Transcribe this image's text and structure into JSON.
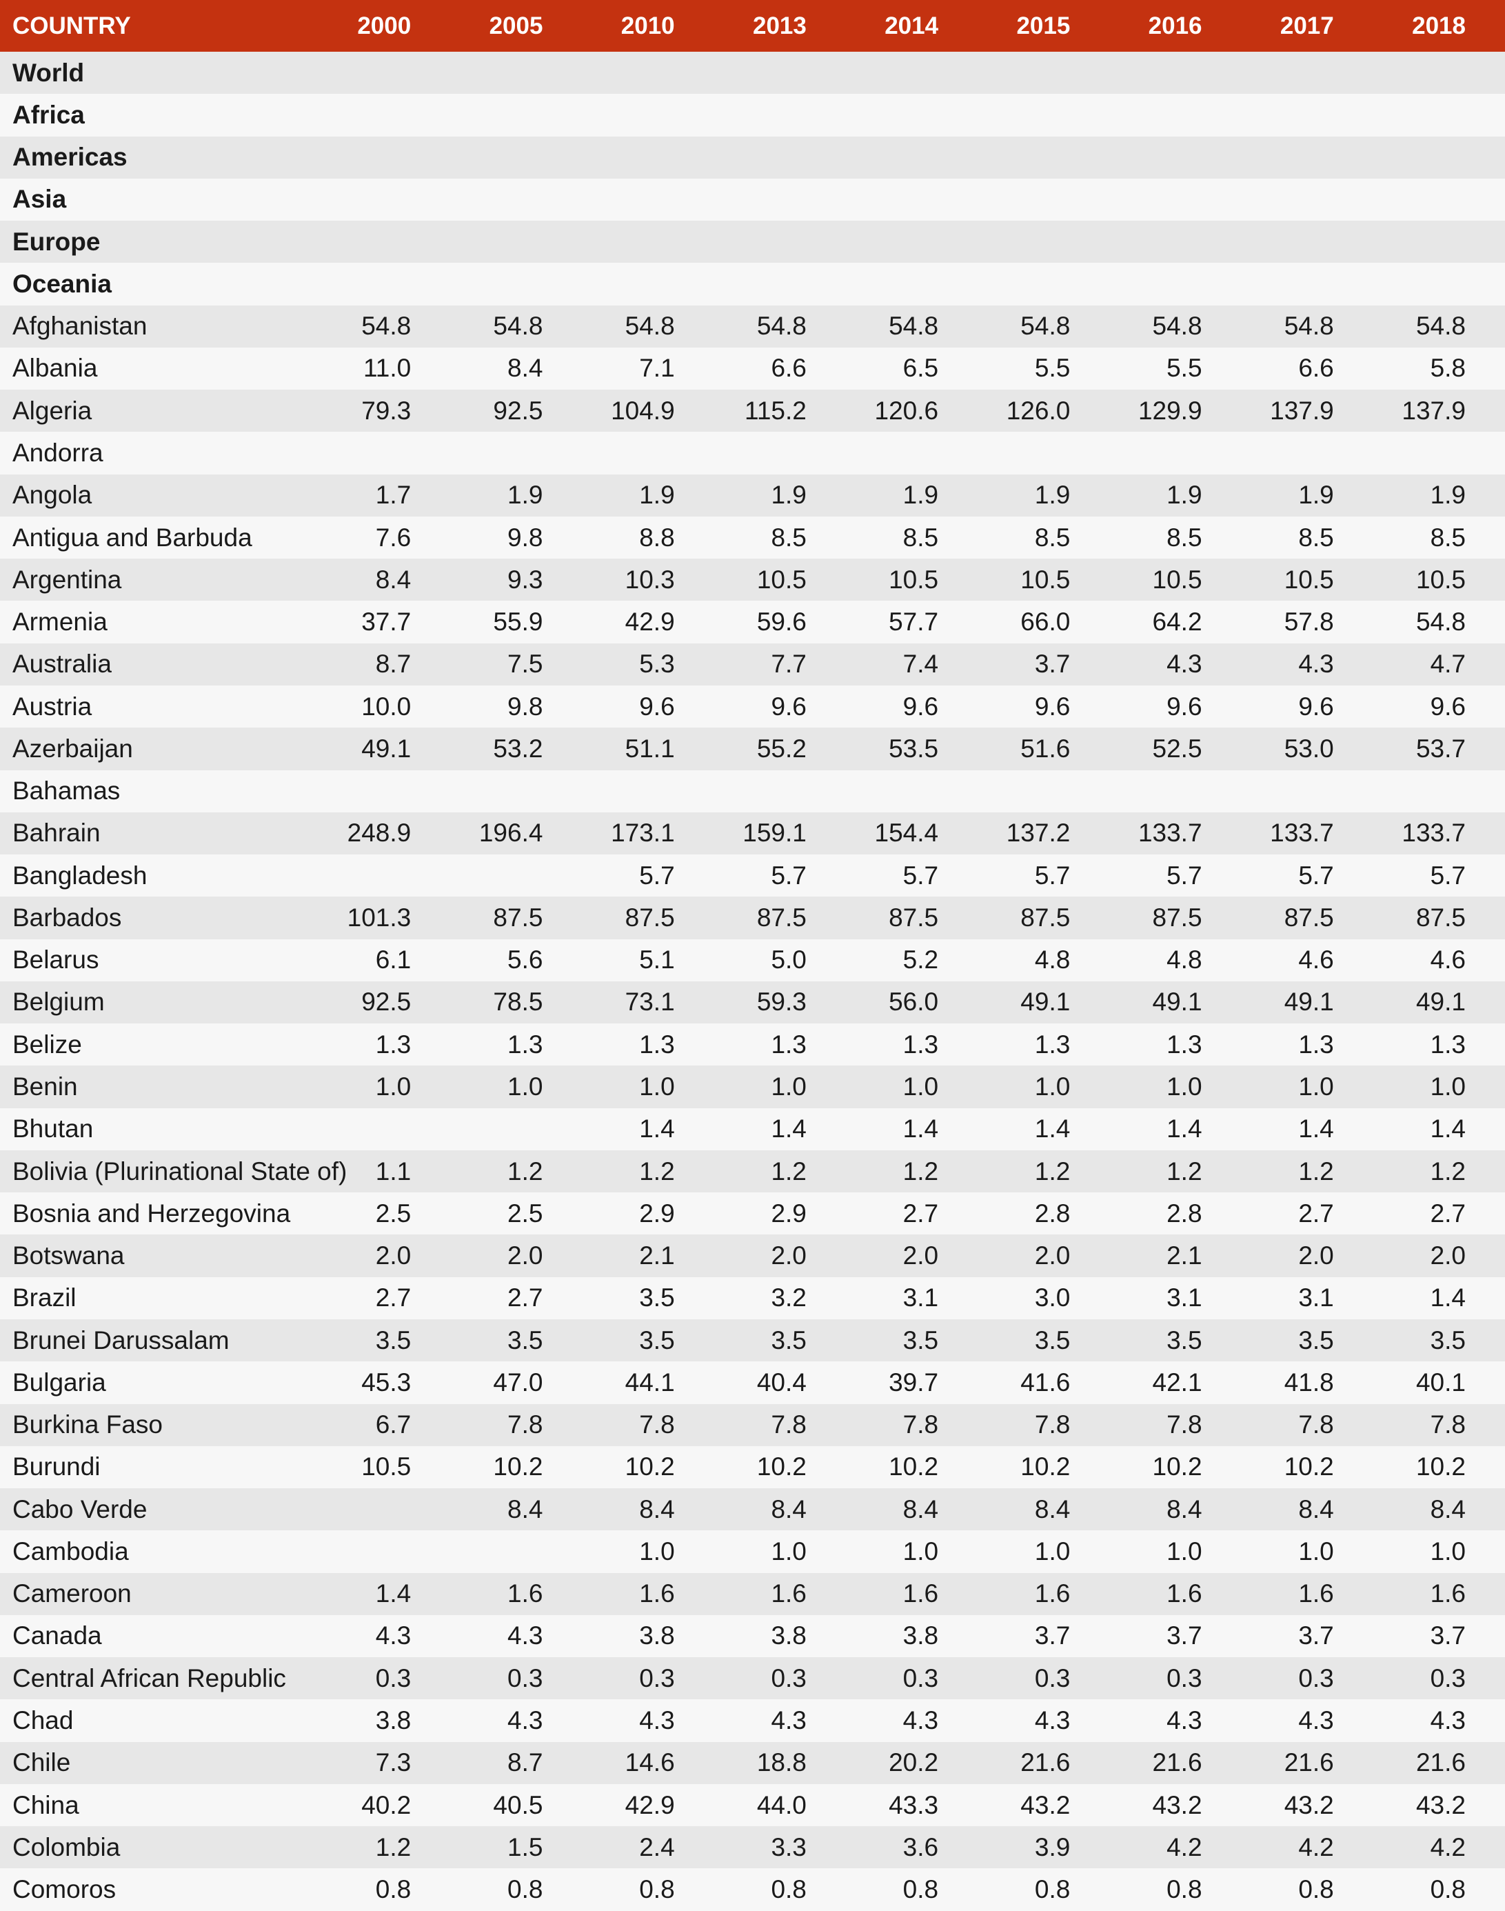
{
  "colors": {
    "header_bg": "#c43210",
    "header_text": "#ffffff",
    "row_shaded": "#e7e7e7",
    "row_plain": "#f7f7f7",
    "text": "#1a1a1a"
  },
  "table": {
    "columns": [
      "COUNTRY",
      "2000",
      "2005",
      "2010",
      "2013",
      "2014",
      "2015",
      "2016",
      "2017",
      "2018"
    ],
    "rows": [
      {
        "name": "World",
        "bold": true,
        "values": [
          "",
          "",
          "",
          "",
          "",
          "",
          "",
          "",
          ""
        ]
      },
      {
        "name": "Africa",
        "bold": true,
        "values": [
          "",
          "",
          "",
          "",
          "",
          "",
          "",
          "",
          ""
        ]
      },
      {
        "name": "Americas",
        "bold": true,
        "values": [
          "",
          "",
          "",
          "",
          "",
          "",
          "",
          "",
          ""
        ]
      },
      {
        "name": "Asia",
        "bold": true,
        "values": [
          "",
          "",
          "",
          "",
          "",
          "",
          "",
          "",
          ""
        ]
      },
      {
        "name": "Europe",
        "bold": true,
        "values": [
          "",
          "",
          "",
          "",
          "",
          "",
          "",
          "",
          ""
        ]
      },
      {
        "name": "Oceania",
        "bold": true,
        "values": [
          "",
          "",
          "",
          "",
          "",
          "",
          "",
          "",
          ""
        ]
      },
      {
        "name": "Afghanistan",
        "bold": false,
        "values": [
          "54.8",
          "54.8",
          "54.8",
          "54.8",
          "54.8",
          "54.8",
          "54.8",
          "54.8",
          "54.8"
        ]
      },
      {
        "name": "Albania",
        "bold": false,
        "values": [
          "11.0",
          "8.4",
          "7.1",
          "6.6",
          "6.5",
          "5.5",
          "5.5",
          "6.6",
          "5.8"
        ]
      },
      {
        "name": "Algeria",
        "bold": false,
        "values": [
          "79.3",
          "92.5",
          "104.9",
          "115.2",
          "120.6",
          "126.0",
          "129.9",
          "137.9",
          "137.9"
        ]
      },
      {
        "name": "Andorra",
        "bold": false,
        "values": [
          "",
          "",
          "",
          "",
          "",
          "",
          "",
          "",
          ""
        ]
      },
      {
        "name": "Angola",
        "bold": false,
        "values": [
          "1.7",
          "1.9",
          "1.9",
          "1.9",
          "1.9",
          "1.9",
          "1.9",
          "1.9",
          "1.9"
        ]
      },
      {
        "name": "Antigua and Barbuda",
        "bold": false,
        "values": [
          "7.6",
          "9.8",
          "8.8",
          "8.5",
          "8.5",
          "8.5",
          "8.5",
          "8.5",
          "8.5"
        ]
      },
      {
        "name": "Argentina",
        "bold": false,
        "values": [
          "8.4",
          "9.3",
          "10.3",
          "10.5",
          "10.5",
          "10.5",
          "10.5",
          "10.5",
          "10.5"
        ]
      },
      {
        "name": "Armenia",
        "bold": false,
        "values": [
          "37.7",
          "55.9",
          "42.9",
          "59.6",
          "57.7",
          "66.0",
          "64.2",
          "57.8",
          "54.8"
        ]
      },
      {
        "name": "Australia",
        "bold": false,
        "values": [
          "8.7",
          "7.5",
          "5.3",
          "7.7",
          "7.4",
          "3.7",
          "4.3",
          "4.3",
          "4.7"
        ]
      },
      {
        "name": "Austria",
        "bold": false,
        "values": [
          "10.0",
          "9.8",
          "9.6",
          "9.6",
          "9.6",
          "9.6",
          "9.6",
          "9.6",
          "9.6"
        ]
      },
      {
        "name": "Azerbaijan",
        "bold": false,
        "values": [
          "49.1",
          "53.2",
          "51.1",
          "55.2",
          "53.5",
          "51.6",
          "52.5",
          "53.0",
          "53.7"
        ]
      },
      {
        "name": "Bahamas",
        "bold": false,
        "values": [
          "",
          "",
          "",
          "",
          "",
          "",
          "",
          "",
          ""
        ]
      },
      {
        "name": "Bahrain",
        "bold": false,
        "values": [
          "248.9",
          "196.4",
          "173.1",
          "159.1",
          "154.4",
          "137.2",
          "133.7",
          "133.7",
          "133.7"
        ]
      },
      {
        "name": "Bangladesh",
        "bold": false,
        "values": [
          "",
          "",
          "5.7",
          "5.7",
          "5.7",
          "5.7",
          "5.7",
          "5.7",
          "5.7"
        ]
      },
      {
        "name": "Barbados",
        "bold": false,
        "values": [
          "101.3",
          "87.5",
          "87.5",
          "87.5",
          "87.5",
          "87.5",
          "87.5",
          "87.5",
          "87.5"
        ]
      },
      {
        "name": "Belarus",
        "bold": false,
        "values": [
          "6.1",
          "5.6",
          "5.1",
          "5.0",
          "5.2",
          "4.8",
          "4.8",
          "4.6",
          "4.6"
        ]
      },
      {
        "name": "Belgium",
        "bold": false,
        "values": [
          "92.5",
          "78.5",
          "73.1",
          "59.3",
          "56.0",
          "49.1",
          "49.1",
          "49.1",
          "49.1"
        ]
      },
      {
        "name": "Belize",
        "bold": false,
        "values": [
          "1.3",
          "1.3",
          "1.3",
          "1.3",
          "1.3",
          "1.3",
          "1.3",
          "1.3",
          "1.3"
        ]
      },
      {
        "name": "Benin",
        "bold": false,
        "values": [
          "1.0",
          "1.0",
          "1.0",
          "1.0",
          "1.0",
          "1.0",
          "1.0",
          "1.0",
          "1.0"
        ]
      },
      {
        "name": "Bhutan",
        "bold": false,
        "values": [
          "",
          "",
          "1.4",
          "1.4",
          "1.4",
          "1.4",
          "1.4",
          "1.4",
          "1.4"
        ]
      },
      {
        "name": "Bolivia (Plurinational State of)",
        "bold": false,
        "values": [
          "1.1",
          "1.2",
          "1.2",
          "1.2",
          "1.2",
          "1.2",
          "1.2",
          "1.2",
          "1.2"
        ]
      },
      {
        "name": "Bosnia and Herzegovina",
        "bold": false,
        "values": [
          "2.5",
          "2.5",
          "2.9",
          "2.9",
          "2.7",
          "2.8",
          "2.8",
          "2.7",
          "2.7"
        ]
      },
      {
        "name": "Botswana",
        "bold": false,
        "values": [
          "2.0",
          "2.0",
          "2.1",
          "2.0",
          "2.0",
          "2.0",
          "2.1",
          "2.0",
          "2.0"
        ]
      },
      {
        "name": "Brazil",
        "bold": false,
        "values": [
          "2.7",
          "2.7",
          "3.5",
          "3.2",
          "3.1",
          "3.0",
          "3.1",
          "3.1",
          "1.4"
        ]
      },
      {
        "name": "Brunei Darussalam",
        "bold": false,
        "values": [
          "3.5",
          "3.5",
          "3.5",
          "3.5",
          "3.5",
          "3.5",
          "3.5",
          "3.5",
          "3.5"
        ]
      },
      {
        "name": "Bulgaria",
        "bold": false,
        "values": [
          "45.3",
          "47.0",
          "44.1",
          "40.4",
          "39.7",
          "41.6",
          "42.1",
          "41.8",
          "40.1"
        ]
      },
      {
        "name": "Burkina Faso",
        "bold": false,
        "values": [
          "6.7",
          "7.8",
          "7.8",
          "7.8",
          "7.8",
          "7.8",
          "7.8",
          "7.8",
          "7.8"
        ]
      },
      {
        "name": "Burundi",
        "bold": false,
        "values": [
          "10.5",
          "10.2",
          "10.2",
          "10.2",
          "10.2",
          "10.2",
          "10.2",
          "10.2",
          "10.2"
        ]
      },
      {
        "name": "Cabo Verde",
        "bold": false,
        "values": [
          "",
          "8.4",
          "8.4",
          "8.4",
          "8.4",
          "8.4",
          "8.4",
          "8.4",
          "8.4"
        ]
      },
      {
        "name": "Cambodia",
        "bold": false,
        "values": [
          "",
          "",
          "1.0",
          "1.0",
          "1.0",
          "1.0",
          "1.0",
          "1.0",
          "1.0"
        ]
      },
      {
        "name": "Cameroon",
        "bold": false,
        "values": [
          "1.4",
          "1.6",
          "1.6",
          "1.6",
          "1.6",
          "1.6",
          "1.6",
          "1.6",
          "1.6"
        ]
      },
      {
        "name": "Canada",
        "bold": false,
        "values": [
          "4.3",
          "4.3",
          "3.8",
          "3.8",
          "3.8",
          "3.7",
          "3.7",
          "3.7",
          "3.7"
        ]
      },
      {
        "name": "Central African Republic",
        "bold": false,
        "values": [
          "0.3",
          "0.3",
          "0.3",
          "0.3",
          "0.3",
          "0.3",
          "0.3",
          "0.3",
          "0.3"
        ]
      },
      {
        "name": "Chad",
        "bold": false,
        "values": [
          "3.8",
          "4.3",
          "4.3",
          "4.3",
          "4.3",
          "4.3",
          "4.3",
          "4.3",
          "4.3"
        ]
      },
      {
        "name": "Chile",
        "bold": false,
        "values": [
          "7.3",
          "8.7",
          "14.6",
          "18.8",
          "20.2",
          "21.6",
          "21.6",
          "21.6",
          "21.6"
        ]
      },
      {
        "name": "China",
        "bold": false,
        "values": [
          "40.2",
          "40.5",
          "42.9",
          "44.0",
          "43.3",
          "43.2",
          "43.2",
          "43.2",
          "43.2"
        ]
      },
      {
        "name": "Colombia",
        "bold": false,
        "values": [
          "1.2",
          "1.5",
          "2.4",
          "3.3",
          "3.6",
          "3.9",
          "4.2",
          "4.2",
          "4.2"
        ]
      },
      {
        "name": "Comoros",
        "bold": false,
        "values": [
          "0.8",
          "0.8",
          "0.8",
          "0.8",
          "0.8",
          "0.8",
          "0.8",
          "0.8",
          "0.8"
        ]
      }
    ]
  }
}
